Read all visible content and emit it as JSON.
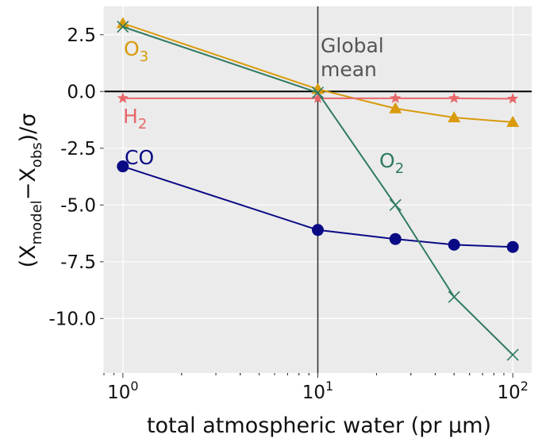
{
  "chart_data": {
    "type": "line",
    "xscale": "log",
    "xlim": [
      0.8,
      125
    ],
    "ylim": [
      -12.4,
      3.75
    ],
    "grid": true,
    "xlabel": "total atmospheric water (pr μm)",
    "ylabel": "(X_model−X_obs)/σ",
    "xtick_labels": [
      {
        "base": "10",
        "exp": "0",
        "x": 1
      },
      {
        "base": "10",
        "exp": "1",
        "x": 10
      },
      {
        "base": "10",
        "exp": "2",
        "x": 100
      }
    ],
    "yticks": [
      2.5,
      0.0,
      -2.5,
      -5.0,
      -7.5,
      -10.0
    ],
    "ytick_labels": [
      "2.5",
      "0.0",
      "-2.5",
      "-5.0",
      "-7.5",
      "-10.0"
    ],
    "reference_lines": {
      "hline_y": 0,
      "vline_x": 10
    },
    "vline_annotation": "Global\nmean",
    "series": [
      {
        "name": "O3",
        "label_base": "O",
        "label_sub": "3",
        "marker": "triangle",
        "color": "#d99a0b",
        "x": [
          1,
          10,
          25,
          50,
          100
        ],
        "y": [
          3.0,
          0.1,
          -0.75,
          -1.15,
          -1.35
        ]
      },
      {
        "name": "H2",
        "label_base": "H",
        "label_sub": "2",
        "marker": "star",
        "color": "#e8666a",
        "x": [
          1,
          10,
          25,
          50,
          100
        ],
        "y": [
          -0.3,
          -0.3,
          -0.3,
          -0.3,
          -0.32
        ]
      },
      {
        "name": "CO",
        "label_base": "CO",
        "label_sub": "",
        "marker": "circle",
        "color": "#0a0a85",
        "x": [
          1,
          10,
          25,
          50,
          100
        ],
        "y": [
          -3.3,
          -6.1,
          -6.5,
          -6.75,
          -6.85
        ]
      },
      {
        "name": "O2",
        "label_base": "O",
        "label_sub": "2",
        "marker": "x",
        "color": "#2f7a62",
        "x": [
          1,
          10,
          25,
          50,
          100
        ],
        "y": [
          2.85,
          -0.05,
          -5.0,
          -9.05,
          -11.6
        ]
      }
    ]
  }
}
